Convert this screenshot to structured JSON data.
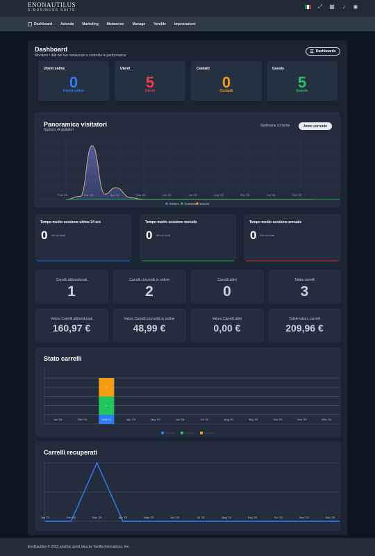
{
  "app": {
    "logo_line1": "ENONAUTILUS",
    "logo_line2": "E-BUSINESS SUITE"
  },
  "topbar": {
    "icons": [
      "italy-flag-icon",
      "fullscreen-icon",
      "grid-apps-icon",
      "bell-icon",
      "user-icon"
    ]
  },
  "nav": {
    "items": [
      "Dashboard",
      "Azienda",
      "Marketing",
      "Metaverso",
      "Manage",
      "Vendite",
      "Impostazioni"
    ]
  },
  "header": {
    "title": "Dashboard",
    "subtitle": "Monitora i dati del tuo metaverso e controlla le performance",
    "button": "Dashboards"
  },
  "stats": [
    {
      "label": "Utenti online",
      "value": "0",
      "sub": "Utenti online",
      "color": "#2f7df6"
    },
    {
      "label": "Utenti",
      "value": "5",
      "sub": "Utenti",
      "color": "#ef3b45"
    },
    {
      "label": "Contatti",
      "value": "0",
      "sub": "Contatti",
      "color": "#f59d10"
    },
    {
      "label": "Guests",
      "value": "5",
      "sub": "Guests",
      "color": "#22c55e"
    }
  ],
  "visitors": {
    "title": "Panoramica visitatori",
    "subtitle": "Numero di visitatori",
    "toggle": [
      "Settimana corrente",
      "Anno corrente"
    ],
    "legend": [
      {
        "name": "Visitors",
        "color": "#2f7df6"
      },
      {
        "name": "Contacts",
        "color": "#22c55e"
      },
      {
        "name": "Guests",
        "color": "#f59d10"
      }
    ]
  },
  "times": [
    {
      "label": "Tempo medio sessione ultime 24 ore",
      "value": "0",
      "unit": "Minuti totali",
      "color": "#2f7df6"
    },
    {
      "label": "Tempo medio sessione mensile",
      "value": "0",
      "unit": "Minuti totali",
      "color": "#22c55e"
    },
    {
      "label": "Tempo medio sessione annuale",
      "value": "0",
      "unit": "Minuti totali",
      "color": "#ef3b45"
    }
  ],
  "carts": [
    {
      "label": "Carrelli abbandonati",
      "value": "1"
    },
    {
      "label": "Carrelli convertiti in ordine",
      "value": "2"
    },
    {
      "label": "Carrelli attivi",
      "value": "0"
    },
    {
      "label": "Totale carrelli",
      "value": "3"
    }
  ],
  "cart_values": [
    {
      "label": "Valore Carrelli abbandonati",
      "value": "160,97 €"
    },
    {
      "label": "Valore Carrelli convertiti in ordine",
      "value": "48,99 €"
    },
    {
      "label": "Valore Carrelli attivi",
      "value": "0,00 €"
    },
    {
      "label": "Totale valore carrelli",
      "value": "209,96 €"
    }
  ],
  "cart_status": {
    "title": "Stato carrelli"
  },
  "recovered": {
    "title": "Carrelli recuperati"
  },
  "footer": {
    "text": "EnoNautilus © 2023 another good idea by Vanilla Innovations, Inc."
  },
  "chart_data": [
    {
      "type": "area",
      "title": "Panoramica visitatori",
      "categories": [
        "Feb '23",
        "Mar '23",
        "Apr '23",
        "May '23",
        "Jun '23",
        "Jul '23",
        "Aug '23",
        "Sep '23",
        "Oct '23",
        "Nov '23"
      ],
      "series": [
        {
          "name": "Visitors",
          "color": "#2f7df6",
          "x": [
            0,
            0.55,
            1,
            1.5,
            1.9,
            2.5,
            3,
            9.5
          ],
          "values": [
            0,
            0.3,
            5,
            0.5,
            1.1,
            0.15,
            0,
            0
          ]
        },
        {
          "name": "Contacts",
          "color": "#22c55e",
          "x": [
            0,
            9.5
          ],
          "values": [
            0,
            0
          ]
        },
        {
          "name": "Guests",
          "color": "#f59d10",
          "x": [
            0,
            0.55,
            1,
            1.5,
            1.9,
            2.5,
            3,
            9.5
          ],
          "values": [
            0,
            0.3,
            5,
            0.5,
            1.1,
            0.15,
            0,
            0
          ]
        }
      ],
      "ylim": [
        0,
        5.5
      ],
      "grid": true,
      "legend": "bottom"
    },
    {
      "type": "bar",
      "title": "Stato carrelli",
      "stacked": true,
      "categories": [
        "Jan '23",
        "Feb '23",
        "Mar '23",
        "Apr '23",
        "May '23",
        "Jun '23",
        "Jul '23",
        "Aug '23",
        "Sep '23",
        "Oct '23",
        "Nov '23",
        "Dec '23"
      ],
      "series": [
        {
          "color": "#2f7df6",
          "values": [
            0,
            0,
            1,
            0,
            0,
            0,
            0,
            0,
            0,
            0,
            0,
            0
          ]
        },
        {
          "color": "#22c55e",
          "values": [
            0,
            0,
            2,
            0,
            0,
            0,
            0,
            0,
            0,
            0,
            0,
            0
          ]
        },
        {
          "color": "#f59d10",
          "values": [
            0,
            0,
            2,
            0,
            0,
            0,
            0,
            0,
            0,
            0,
            0,
            0
          ]
        }
      ],
      "ylim": [
        0,
        5.5
      ],
      "grid": true,
      "legend": "bottom"
    },
    {
      "type": "line",
      "title": "Carrelli recuperati",
      "categories": [
        "Jan '23",
        "Feb '23",
        "Mar '23",
        "Apr '23",
        "May '23",
        "Jun '23",
        "Jul '23",
        "Aug '23",
        "Sep '23",
        "Oct '23",
        "Nov '23",
        "Dec '23"
      ],
      "series": [
        {
          "color": "#2f7df6",
          "values": [
            0,
            0,
            2,
            0,
            0,
            0,
            0,
            0,
            0,
            0,
            0,
            0
          ]
        }
      ],
      "ylim": [
        0,
        2
      ],
      "grid": true
    }
  ]
}
